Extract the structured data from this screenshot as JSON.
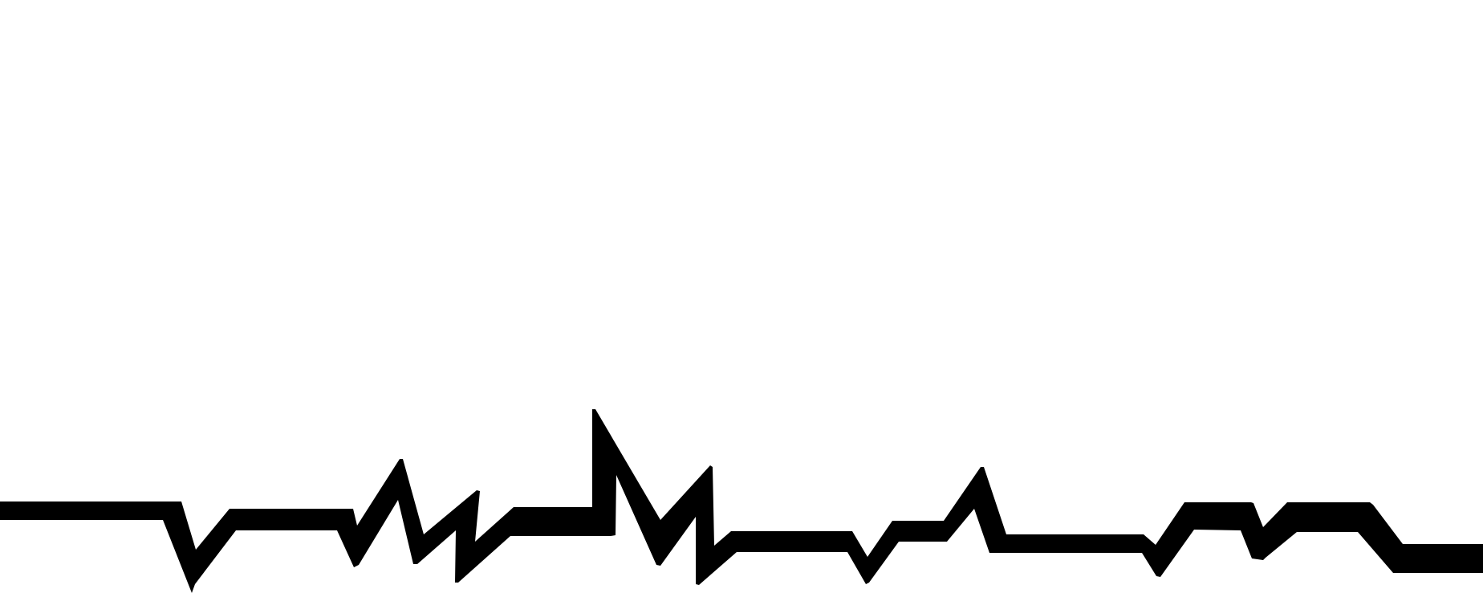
{
  "artwork": {
    "subject": "zigzag-black-band-line",
    "colors": {
      "background": "#ffffff",
      "ink": "#000000"
    }
  }
}
